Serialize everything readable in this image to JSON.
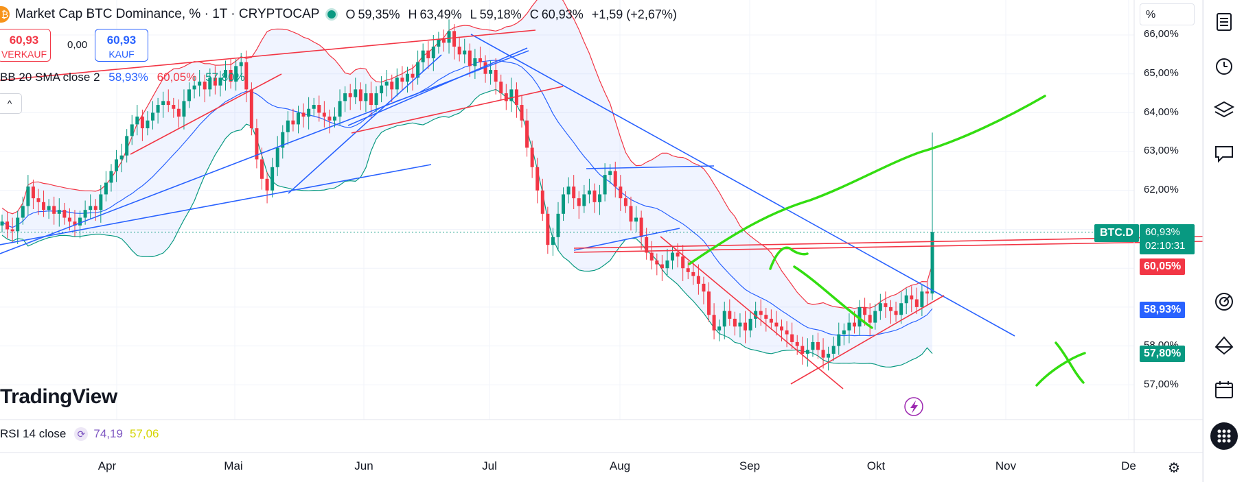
{
  "header": {
    "title": "Market Cap BTC Dominance, % · 1T · CRYPTOCAP",
    "open_label": "O",
    "open": "59,35%",
    "high_label": "H",
    "high": "63,49%",
    "low_label": "L",
    "low": "59,18%",
    "close_label": "C",
    "close": "60,93%",
    "change": "+1,59 (+2,67%)",
    "coin_glyph": "₿"
  },
  "trade": {
    "sell_value": "60,93",
    "sell_label": "VERKAUF",
    "spread": "0,00",
    "buy_value": "60,93",
    "buy_label": "KAUF"
  },
  "bb_indicator": {
    "label": "BB 20 SMA close 2",
    "basis": "58,93%",
    "upper": "60,05%",
    "lower": "57,80%"
  },
  "collapse_glyph": "^",
  "logo_text": "TradingView",
  "rsi": {
    "label": "RSI 14 close",
    "value1": "74,19",
    "value2": "57,06",
    "icon": "refresh-icon"
  },
  "price_scale": {
    "unit": "%",
    "labels": [
      "66,00%",
      "65,00%",
      "64,00%",
      "63,00%",
      "62,00%",
      "58,00%",
      "57,00%"
    ],
    "symbol_tag": "BTC.D",
    "current_price": "60,93%",
    "countdown": "02:10:31",
    "bb_upper_tag": "60,05%",
    "bb_basis_tag": "58,93%",
    "bb_lower_tag": "57,80%"
  },
  "time_axis": {
    "labels": [
      "Apr",
      "Mai",
      "Jun",
      "Jul",
      "Aug",
      "Sep",
      "Okt",
      "Nov",
      "De"
    ]
  },
  "colors": {
    "up": "#089981",
    "down": "#f23645",
    "bb_upper": "#f23645",
    "bb_basis": "#2962ff",
    "bb_lower": "#089981",
    "trendline_blue": "#2962ff",
    "trendline_red": "#f23645",
    "drawing_green": "#33dd11"
  },
  "chart_data": {
    "type": "candlestick",
    "title": "Market Cap BTC Dominance, %",
    "timeframe": "1T",
    "ylim": [
      56.75,
      66.1
    ],
    "x_ticks": [
      "Apr",
      "Mai",
      "Jun",
      "Jul",
      "Aug",
      "Sep",
      "Okt",
      "Nov",
      "De"
    ],
    "closes": [
      61.2,
      61.0,
      60.95,
      61.3,
      61.6,
      62.1,
      61.8,
      61.7,
      61.5,
      61.6,
      61.4,
      61.5,
      61.3,
      61.2,
      61.1,
      61.3,
      61.5,
      61.6,
      61.5,
      61.9,
      62.2,
      62.5,
      62.8,
      62.9,
      63.4,
      63.7,
      63.9,
      63.6,
      63.8,
      64.0,
      64.2,
      64.3,
      64.2,
      64.1,
      63.9,
      64.3,
      64.6,
      64.7,
      64.8,
      64.6,
      64.9,
      64.7,
      64.9,
      65.1,
      64.8,
      65.2,
      65.3,
      64.6,
      63.6,
      62.8,
      62.3,
      62.0,
      62.6,
      63.1,
      63.5,
      63.8,
      63.7,
      64.0,
      63.9,
      64.1,
      64.2,
      64.0,
      63.9,
      63.8,
      63.9,
      64.3,
      64.5,
      64.4,
      64.6,
      64.3,
      64.5,
      64.2,
      64.5,
      64.7,
      64.8,
      64.6,
      64.9,
      64.8,
      65.0,
      64.9,
      65.3,
      65.6,
      65.4,
      65.7,
      65.9,
      65.8,
      66.1,
      65.7,
      65.5,
      65.6,
      65.2,
      65.4,
      65.3,
      65.0,
      65.1,
      64.8,
      64.5,
      64.3,
      64.6,
      64.2,
      63.8,
      63.1,
      62.6,
      62.0,
      61.4,
      60.6,
      60.8,
      61.4,
      61.9,
      62.1,
      61.8,
      61.6,
      61.9,
      62.0,
      61.7,
      61.9,
      62.4,
      62.5,
      62.1,
      61.8,
      61.6,
      61.2,
      61.3,
      60.8,
      60.4,
      60.2,
      60.1,
      60.0,
      60.2,
      60.4,
      60.3,
      60.0,
      59.9,
      59.8,
      59.6,
      59.4,
      58.8,
      58.4,
      58.5,
      58.9,
      58.7,
      58.5,
      58.6,
      58.4,
      58.7,
      58.9,
      58.8,
      58.7,
      58.6,
      58.5,
      58.4,
      58.3,
      58.1,
      58.0,
      57.8,
      57.9,
      58.1,
      57.9,
      57.7,
      57.8,
      58.0,
      58.3,
      58.4,
      58.6,
      58.5,
      59.0,
      58.8,
      58.6,
      58.9,
      59.1,
      59.0,
      58.9,
      58.8,
      59.1,
      59.3,
      59.2,
      59.0,
      59.4,
      59.35,
      60.93
    ]
  }
}
